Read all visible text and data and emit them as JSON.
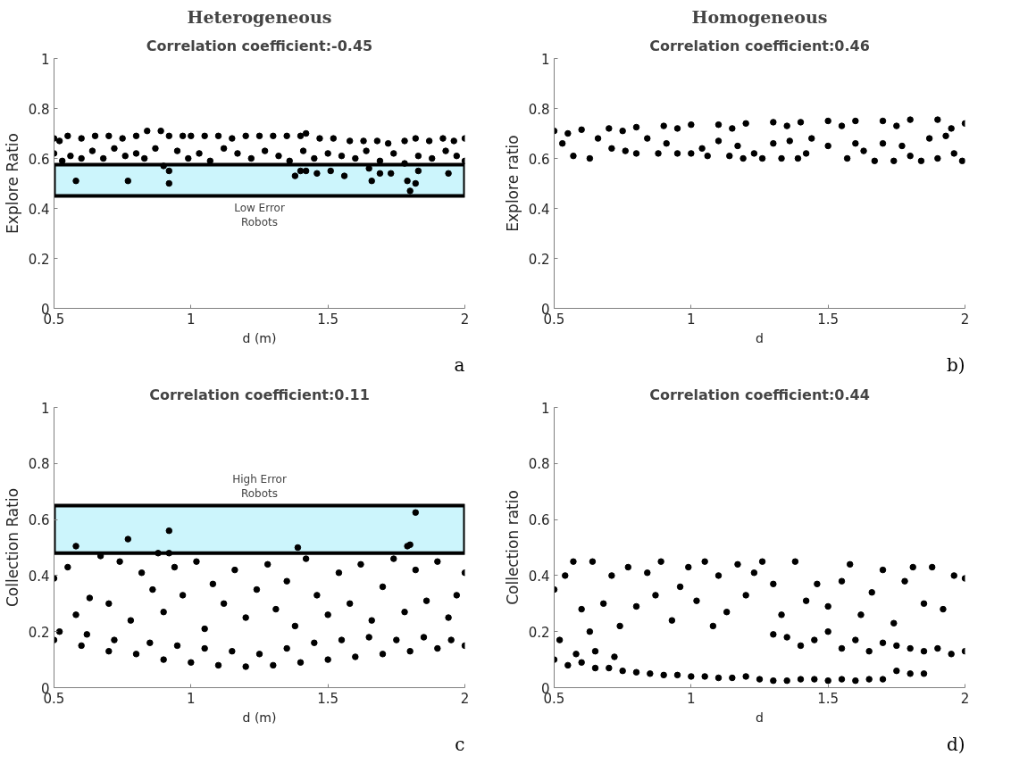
{
  "chart_data": [
    {
      "type": "scatter",
      "title": "Heterogeneous",
      "subtitle": "Correlation coefficient:-0.45",
      "xlabel": "d (m)",
      "ylabel": "Explore Ratio",
      "marker": "circle",
      "grid": false,
      "xlim": [
        0.5,
        2
      ],
      "ylim": [
        0,
        1
      ],
      "xticks": [
        0.5,
        1,
        1.5,
        2
      ],
      "yticks": [
        0,
        0.2,
        0.4,
        0.6,
        0.8,
        1
      ],
      "bands": [
        {
          "axis": "y",
          "from": 0.45,
          "to": 0.575,
          "color": "#ccf5fc",
          "label": "Low Error\nRobots"
        }
      ],
      "annotations": [
        "a"
      ],
      "series": [
        {
          "color": "#000000",
          "x": [
            0.5,
            0.52,
            0.55,
            0.6,
            0.65,
            0.7,
            0.75,
            0.8,
            0.84,
            0.89,
            0.92,
            0.97,
            1.0,
            1.05,
            1.1,
            1.15,
            1.2,
            1.25,
            1.3,
            1.35,
            1.4,
            1.42,
            1.47,
            1.52,
            1.58,
            1.63,
            1.68,
            1.72,
            1.78,
            1.82,
            1.87,
            1.92,
            1.96,
            2.0,
            0.5,
            0.53,
            0.56,
            0.6,
            0.64,
            0.68,
            0.72,
            0.76,
            0.8,
            0.83,
            0.87,
            0.9,
            0.95,
            0.99,
            1.03,
            1.07,
            1.12,
            1.17,
            1.22,
            1.27,
            1.32,
            1.36,
            1.41,
            1.45,
            1.5,
            1.55,
            1.6,
            1.64,
            1.69,
            1.74,
            1.78,
            1.83,
            1.88,
            1.93,
            1.97,
            2.0,
            0.58,
            0.77,
            0.92,
            0.92,
            1.38,
            1.4,
            1.42,
            1.46,
            1.51,
            1.56,
            1.65,
            1.66,
            1.69,
            1.73,
            1.79,
            1.8,
            1.82,
            1.83,
            1.94
          ],
          "values": [
            0.68,
            0.67,
            0.69,
            0.68,
            0.69,
            0.69,
            0.68,
            0.69,
            0.71,
            0.71,
            0.69,
            0.69,
            0.69,
            0.69,
            0.69,
            0.68,
            0.69,
            0.69,
            0.69,
            0.69,
            0.69,
            0.7,
            0.68,
            0.68,
            0.67,
            0.67,
            0.67,
            0.66,
            0.67,
            0.68,
            0.67,
            0.68,
            0.67,
            0.68,
            0.62,
            0.59,
            0.61,
            0.6,
            0.63,
            0.6,
            0.64,
            0.61,
            0.62,
            0.6,
            0.64,
            0.57,
            0.63,
            0.6,
            0.62,
            0.59,
            0.64,
            0.62,
            0.6,
            0.63,
            0.61,
            0.59,
            0.63,
            0.6,
            0.62,
            0.61,
            0.6,
            0.63,
            0.59,
            0.62,
            0.58,
            0.61,
            0.6,
            0.63,
            0.61,
            0.59,
            0.51,
            0.51,
            0.55,
            0.5,
            0.53,
            0.55,
            0.55,
            0.54,
            0.55,
            0.53,
            0.56,
            0.51,
            0.54,
            0.54,
            0.51,
            0.47,
            0.5,
            0.55,
            0.54
          ]
        }
      ]
    },
    {
      "type": "scatter",
      "title": "Homogeneous",
      "subtitle": "Correlation coefficient:0.46",
      "xlabel": "d",
      "ylabel": "Explore ratio",
      "marker": "circle",
      "grid": false,
      "xlim": [
        0.5,
        2
      ],
      "ylim": [
        0,
        1
      ],
      "xticks": [
        0.5,
        1,
        1.5,
        2
      ],
      "yticks": [
        0,
        0.2,
        0.4,
        0.6,
        0.8,
        1
      ],
      "annotations": [
        "b)"
      ],
      "series": [
        {
          "color": "#000000",
          "x": [
            0.5,
            0.6,
            0.7,
            0.8,
            0.9,
            1.0,
            1.1,
            1.2,
            1.3,
            1.4,
            1.5,
            1.6,
            1.7,
            1.8,
            1.9,
            2.0,
            0.55,
            0.75,
            0.95,
            1.15,
            1.35,
            1.55,
            1.75,
            1.95,
            0.53,
            0.57,
            0.63,
            0.66,
            0.71,
            0.76,
            0.8,
            0.84,
            0.88,
            0.91,
            0.95,
            1.0,
            1.04,
            1.06,
            1.1,
            1.14,
            1.17,
            1.19,
            1.23,
            1.26,
            1.3,
            1.33,
            1.36,
            1.39,
            1.42,
            1.44,
            1.5,
            1.57,
            1.6,
            1.63,
            1.67,
            1.7,
            1.74,
            1.77,
            1.8,
            1.84,
            1.87,
            1.9,
            1.93,
            1.96,
            1.99
          ],
          "values": [
            0.71,
            0.715,
            0.72,
            0.725,
            0.73,
            0.735,
            0.735,
            0.74,
            0.745,
            0.745,
            0.75,
            0.75,
            0.75,
            0.755,
            0.755,
            0.74,
            0.7,
            0.71,
            0.72,
            0.72,
            0.73,
            0.73,
            0.73,
            0.72,
            0.66,
            0.61,
            0.6,
            0.68,
            0.64,
            0.63,
            0.62,
            0.68,
            0.62,
            0.66,
            0.62,
            0.62,
            0.64,
            0.61,
            0.67,
            0.61,
            0.65,
            0.6,
            0.62,
            0.6,
            0.66,
            0.6,
            0.67,
            0.6,
            0.62,
            0.68,
            0.65,
            0.6,
            0.66,
            0.63,
            0.59,
            0.66,
            0.59,
            0.65,
            0.61,
            0.59,
            0.68,
            0.6,
            0.69,
            0.62,
            0.59
          ]
        }
      ]
    },
    {
      "type": "scatter",
      "subtitle": "Correlation coefficient:0.11",
      "xlabel": "d (m)",
      "ylabel": "Collection Ratio",
      "marker": "circle",
      "grid": false,
      "xlim": [
        0.5,
        2
      ],
      "ylim": [
        0,
        1
      ],
      "xticks": [
        0.5,
        1,
        1.5,
        2
      ],
      "yticks": [
        0,
        0.2,
        0.4,
        0.6,
        0.8,
        1
      ],
      "bands": [
        {
          "axis": "y",
          "from": 0.48,
          "to": 0.65,
          "color": "#ccf5fc",
          "label": "High Error\nRobots"
        }
      ],
      "annotations": [
        "c"
      ],
      "series": [
        {
          "color": "#000000",
          "x": [
            0.5,
            0.6,
            0.7,
            0.8,
            0.9,
            1.0,
            1.1,
            1.2,
            1.3,
            1.4,
            1.5,
            1.6,
            1.7,
            1.8,
            1.9,
            2.0,
            0.52,
            0.62,
            0.72,
            0.85,
            0.95,
            1.05,
            1.15,
            1.25,
            1.35,
            1.45,
            1.55,
            1.65,
            1.75,
            1.85,
            1.95,
            0.5,
            0.55,
            0.58,
            0.63,
            0.67,
            0.7,
            0.74,
            0.78,
            0.82,
            0.86,
            0.9,
            0.94,
            0.97,
            1.02,
            1.05,
            1.08,
            1.12,
            1.16,
            1.2,
            1.24,
            1.28,
            1.31,
            1.35,
            1.38,
            1.42,
            1.46,
            1.5,
            1.54,
            1.58,
            1.62,
            1.66,
            1.7,
            1.74,
            1.78,
            1.82,
            1.86,
            1.9,
            1.94,
            1.97,
            2.0,
            0.58,
            0.77,
            0.88,
            0.92,
            0.92,
            1.39,
            1.79,
            1.8,
            1.82
          ],
          "values": [
            0.17,
            0.15,
            0.13,
            0.12,
            0.1,
            0.09,
            0.08,
            0.075,
            0.08,
            0.09,
            0.1,
            0.11,
            0.12,
            0.13,
            0.14,
            0.15,
            0.2,
            0.19,
            0.17,
            0.16,
            0.15,
            0.14,
            0.13,
            0.12,
            0.14,
            0.16,
            0.17,
            0.18,
            0.17,
            0.18,
            0.17,
            0.39,
            0.43,
            0.26,
            0.32,
            0.47,
            0.3,
            0.45,
            0.24,
            0.41,
            0.35,
            0.27,
            0.43,
            0.33,
            0.45,
            0.21,
            0.37,
            0.3,
            0.42,
            0.25,
            0.35,
            0.44,
            0.28,
            0.38,
            0.22,
            0.46,
            0.33,
            0.26,
            0.41,
            0.3,
            0.44,
            0.24,
            0.36,
            0.46,
            0.27,
            0.42,
            0.31,
            0.45,
            0.25,
            0.33,
            0.41,
            0.505,
            0.53,
            0.48,
            0.56,
            0.48,
            0.5,
            0.505,
            0.51,
            0.625
          ]
        }
      ]
    },
    {
      "type": "scatter",
      "subtitle": "Correlation coefficient:0.44",
      "xlabel": "d",
      "ylabel": "Collection ratio",
      "marker": "circle",
      "grid": false,
      "xlim": [
        0.5,
        2
      ],
      "ylim": [
        0,
        1
      ],
      "xticks": [
        0.5,
        1,
        1.5,
        2
      ],
      "yticks": [
        0,
        0.2,
        0.4,
        0.6,
        0.8,
        1
      ],
      "annotations": [
        "d)"
      ],
      "series": [
        {
          "color": "#000000",
          "x": [
            0.5,
            0.55,
            0.6,
            0.65,
            0.7,
            0.75,
            0.8,
            0.85,
            0.9,
            0.95,
            1.0,
            1.05,
            1.1,
            1.15,
            1.2,
            1.25,
            1.3,
            1.35,
            1.4,
            1.45,
            1.5,
            1.55,
            1.6,
            1.65,
            1.7,
            1.75,
            1.8,
            1.85,
            0.52,
            0.58,
            0.65,
            0.72,
            1.3,
            1.35,
            1.4,
            1.45,
            1.5,
            1.55,
            1.6,
            1.65,
            1.7,
            1.75,
            1.8,
            1.85,
            1.9,
            1.95,
            2.0,
            0.5,
            0.54,
            0.57,
            0.6,
            0.63,
            0.64,
            0.68,
            0.71,
            0.74,
            0.77,
            0.8,
            0.84,
            0.87,
            0.89,
            0.93,
            0.96,
            0.99,
            1.02,
            1.05,
            1.08,
            1.1,
            1.13,
            1.17,
            1.2,
            1.23,
            1.26,
            1.3,
            1.33,
            1.38,
            1.42,
            1.46,
            1.5,
            1.55,
            1.58,
            1.62,
            1.66,
            1.7,
            1.74,
            1.78,
            1.81,
            1.85,
            1.88,
            1.92,
            1.96,
            2.0
          ],
          "values": [
            0.1,
            0.08,
            0.09,
            0.07,
            0.07,
            0.06,
            0.055,
            0.05,
            0.045,
            0.045,
            0.04,
            0.04,
            0.035,
            0.035,
            0.04,
            0.03,
            0.025,
            0.025,
            0.03,
            0.03,
            0.025,
            0.03,
            0.025,
            0.03,
            0.03,
            0.06,
            0.05,
            0.05,
            0.17,
            0.12,
            0.13,
            0.11,
            0.19,
            0.18,
            0.15,
            0.17,
            0.2,
            0.14,
            0.17,
            0.13,
            0.16,
            0.15,
            0.14,
            0.13,
            0.14,
            0.12,
            0.13,
            0.35,
            0.4,
            0.45,
            0.28,
            0.2,
            0.45,
            0.3,
            0.4,
            0.22,
            0.43,
            0.29,
            0.41,
            0.33,
            0.45,
            0.24,
            0.36,
            0.43,
            0.31,
            0.45,
            0.22,
            0.4,
            0.27,
            0.44,
            0.33,
            0.41,
            0.45,
            0.37,
            0.26,
            0.45,
            0.31,
            0.37,
            0.29,
            0.38,
            0.44,
            0.26,
            0.34,
            0.42,
            0.23,
            0.38,
            0.43,
            0.3,
            0.43,
            0.28,
            0.4,
            0.39
          ]
        }
      ]
    }
  ]
}
